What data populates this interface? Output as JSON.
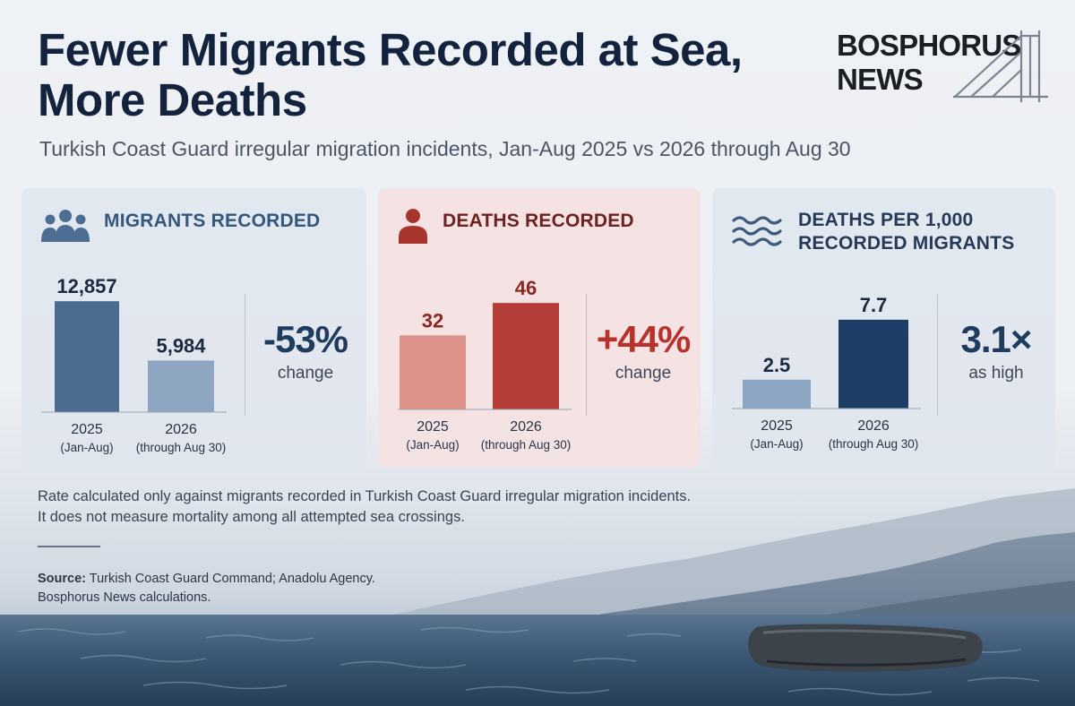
{
  "header": {
    "title": "Fewer Migrants Recorded at Sea, More Deaths",
    "subtitle": "Turkish Coast Guard irregular migration incidents, Jan-Aug 2025 vs 2026 through Aug 30",
    "brand_line1": "BOSPHORUS",
    "brand_line2": "NEWS"
  },
  "chart_data": [
    {
      "type": "bar",
      "title": "MIGRANTS RECORDED",
      "categories": [
        "2025\n(Jan-Aug)",
        "2026\n(through Aug 30)"
      ],
      "category_line1": [
        "2025",
        "2026"
      ],
      "category_line2": [
        "(Jan-Aug)",
        "(through Aug 30)"
      ],
      "values": [
        12857,
        5984
      ],
      "value_labels": [
        "12,857",
        "5,984"
      ],
      "ylim": [
        0,
        13500
      ],
      "colors": [
        "#4b6b8f",
        "#8ea6c2"
      ],
      "label_colors": [
        "#1b2a40",
        "#1b2a40"
      ],
      "stat_value": "-53%",
      "stat_label": "change",
      "stat_color": "#1f3b5e",
      "icon": "people-icon"
    },
    {
      "type": "bar",
      "title": "DEATHS RECORDED",
      "categories": [
        "2025\n(Jan-Aug)",
        "2026\n(through Aug 30)"
      ],
      "category_line1": [
        "2025",
        "2026"
      ],
      "category_line2": [
        "(Jan-Aug)",
        "(through Aug 30)"
      ],
      "values": [
        32,
        46
      ],
      "value_labels": [
        "32",
        "46"
      ],
      "ylim": [
        0,
        48
      ],
      "colors": [
        "#dd928a",
        "#b43e37"
      ],
      "label_colors": [
        "#8a2822",
        "#8a2822"
      ],
      "stat_value": "+44%",
      "stat_label": "change",
      "stat_color": "#b8322c",
      "icon": "person-icon"
    },
    {
      "type": "bar",
      "title": "DEATHS PER 1,000 RECORDED MIGRANTS",
      "title_lines": [
        "DEATHS PER 1,000",
        "RECORDED MIGRANTS"
      ],
      "categories": [
        "2025\n(Jan-Aug)",
        "2026\n(through Aug 30)"
      ],
      "category_line1": [
        "2025",
        "2026"
      ],
      "category_line2": [
        "(Jan-Aug)",
        "(through Aug 30)"
      ],
      "values": [
        2.5,
        7.7
      ],
      "value_labels": [
        "2.5",
        "7.7"
      ],
      "ylim": [
        0,
        8
      ],
      "colors": [
        "#8ba6c2",
        "#1c3e66"
      ],
      "label_colors": [
        "#1b2a40",
        "#1b2a40"
      ],
      "stat_value": "3.1×",
      "stat_label": "as high",
      "stat_color": "#1f3b5e",
      "icon": "waves-icon"
    }
  ],
  "footer": {
    "note_line1": "Rate calculated only against migrants recorded in Turkish Coast Guard irregular migration incidents.",
    "note_line2": "It does not measure mortality among all attempted sea crossings.",
    "source_label": "Source:",
    "source_text": "Turkish Coast Guard Command; Anadolu Agency.",
    "source_line2": "Bosphorus News calculations."
  },
  "colors": {
    "title": "#13233d",
    "sea": "#3b5875",
    "mountains": "#6e8196"
  }
}
